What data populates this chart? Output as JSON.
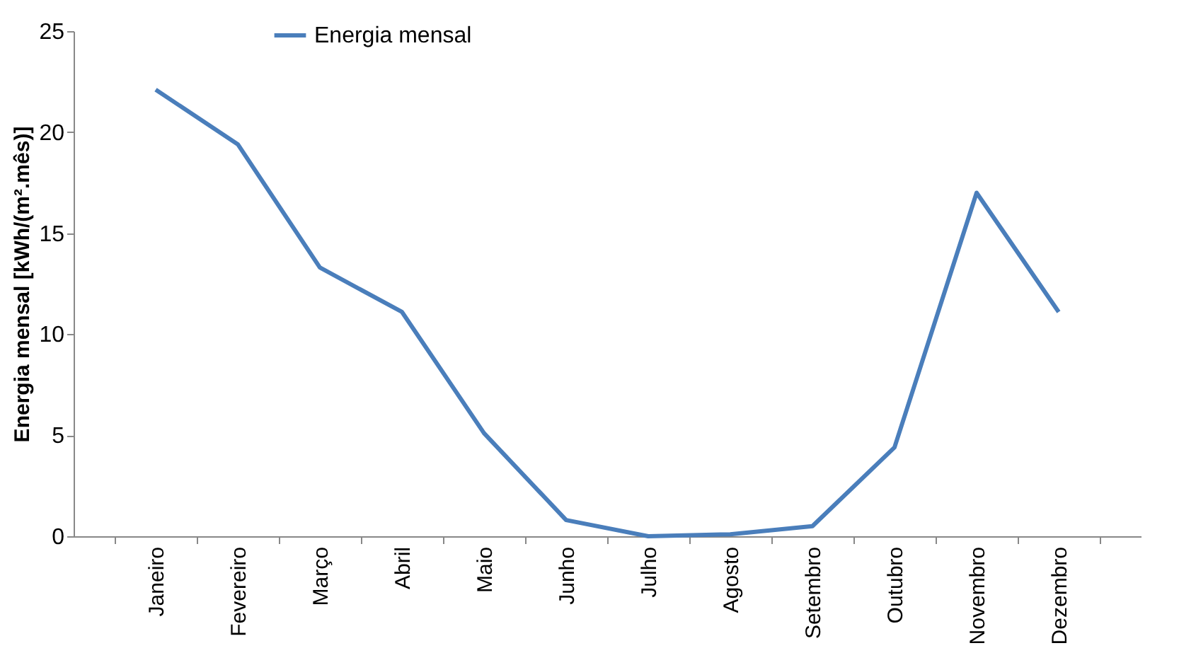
{
  "chart_data": {
    "type": "line",
    "ylabel": "Energia mensal [kWh/(m².mês)]",
    "categories": [
      "Janeiro",
      "Fevereiro",
      "Março",
      "Abril",
      "Maio",
      "Junho",
      "Julho",
      "Agosto",
      "Setembro",
      "Outubro",
      "Novembro",
      "Dezembro"
    ],
    "series": [
      {
        "name": "Energia mensal",
        "color": "#4a7ebb",
        "values": [
          22.1,
          19.4,
          13.3,
          11.1,
          5.1,
          0.8,
          0,
          0.1,
          0.5,
          4.4,
          17.0,
          11.1
        ]
      }
    ],
    "ylim": [
      0,
      25
    ],
    "yticks": [
      0,
      5,
      10,
      15,
      20,
      25
    ],
    "grid": false,
    "legend": "top left",
    "marker": "none",
    "line_style": "solid"
  }
}
